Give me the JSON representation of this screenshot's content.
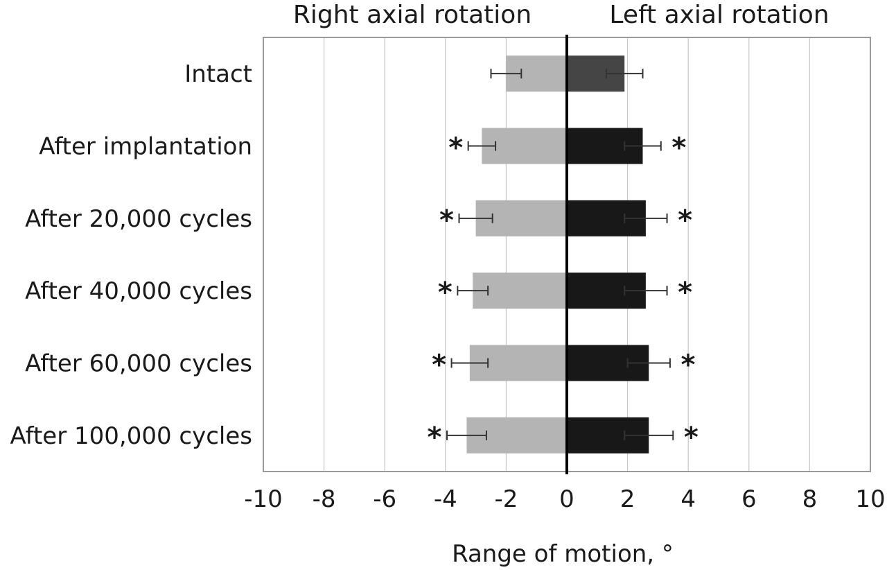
{
  "chart_data": {
    "type": "bar",
    "orientation": "horizontal",
    "headers": {
      "left": "Right axial rotation",
      "right": "Left axial rotation"
    },
    "xlabel": "Range of motion, °",
    "ylabel": "",
    "xlim": [
      -10,
      10
    ],
    "xticks": [
      -10,
      -8,
      -6,
      -4,
      -2,
      0,
      2,
      4,
      6,
      8,
      10
    ],
    "grid": true,
    "categories": [
      "Intact",
      "After implantation",
      "After 20,000 cycles",
      "After 40,000 cycles",
      "After 60,000 cycles",
      "After 100,000 cycles"
    ],
    "series": [
      {
        "direction": "right axial rotation",
        "color": "#b4b4b4",
        "values": [
          -2.0,
          -2.8,
          -3.0,
          -3.1,
          -3.2,
          -3.3
        ],
        "error": [
          0.5,
          0.45,
          0.55,
          0.5,
          0.6,
          0.65
        ],
        "significant": [
          false,
          true,
          true,
          true,
          true,
          true
        ]
      },
      {
        "direction": "left axial rotation",
        "colors": [
          "#454545",
          "#181818",
          "#181818",
          "#181818",
          "#181818",
          "#181818"
        ],
        "values": [
          1.9,
          2.5,
          2.6,
          2.6,
          2.7,
          2.7
        ],
        "error": [
          0.6,
          0.6,
          0.7,
          0.7,
          0.7,
          0.8
        ],
        "significant": [
          false,
          true,
          true,
          true,
          true,
          true
        ]
      }
    ],
    "significance_marker": "*"
  }
}
